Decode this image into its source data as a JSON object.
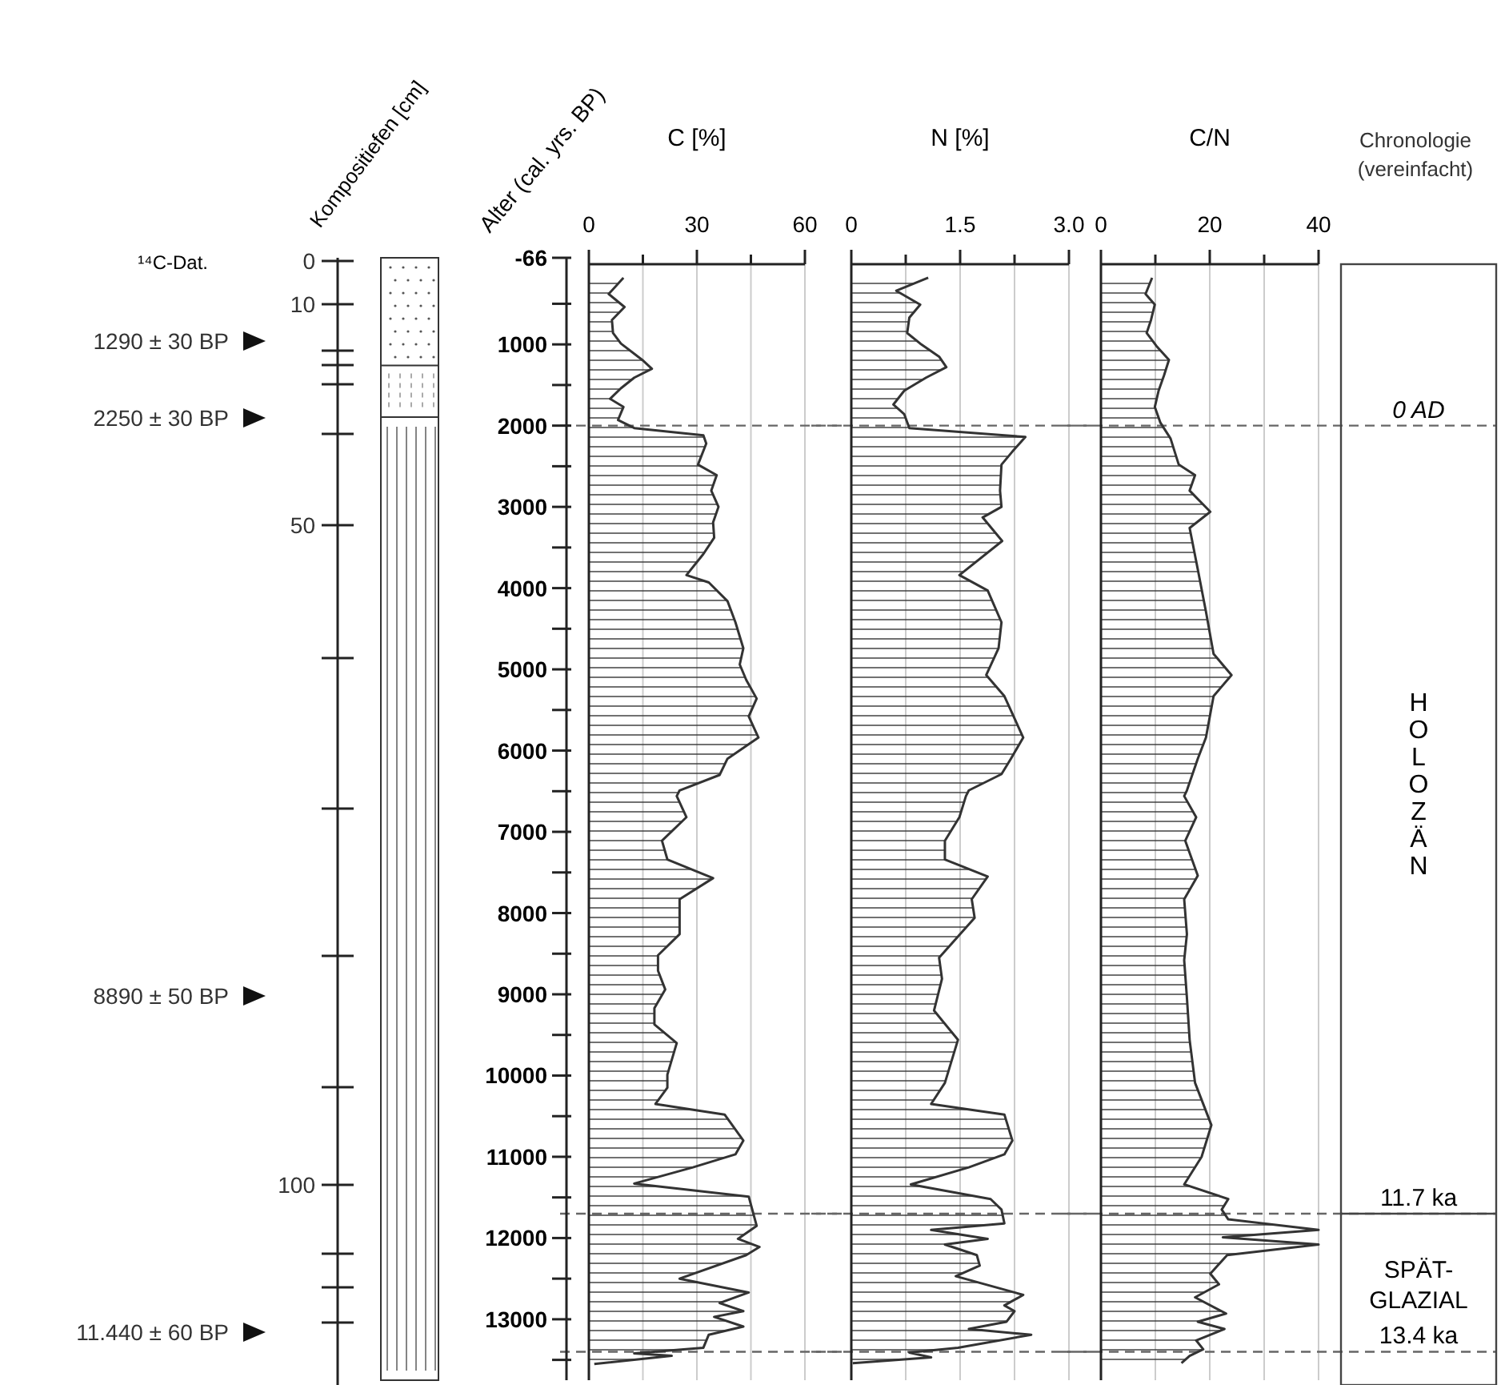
{
  "chart_data": [
    {
      "type": "other",
      "ylabel": "Kompositiefen [cm]",
      "annotations": [
        "¹⁴C-Dat.",
        "1290 ± 30 BP",
        "2250 ± 30 BP",
        "8890 ± 50 BP",
        "11.440 ± 60 BP",
        "0",
        "10",
        "50",
        "100"
      ]
    },
    {
      "type": "area",
      "title": "C [%]",
      "orientation": "horizontal",
      "ylabel": "Alter (cal. yrs. BP)",
      "series": [
        {
          "color": "#333333",
          "x": [
            180,
            380,
            540,
            700,
            860,
            990,
            1190,
            1300,
            1410,
            1540,
            1670,
            1770,
            1930,
            2030,
            2120,
            2220,
            2480,
            2610,
            2800,
            3000,
            3190,
            3380,
            3580,
            3840,
            3930,
            4160,
            4420,
            4740,
            4940,
            5130,
            5360,
            5580,
            5840,
            6100,
            6300,
            6490,
            6560,
            6820,
            7110,
            7340,
            7570,
            7830,
            8260,
            8520,
            8710,
            8940,
            9170,
            9370,
            9600,
            9990,
            10150,
            10350,
            10480,
            10800,
            10970,
            11130,
            11330,
            11490,
            11850,
            12010,
            12110,
            12210,
            12500,
            12670,
            12800,
            12900,
            12970,
            13090,
            13190,
            13350,
            13420,
            13450,
            13550
          ],
          "values": [
            9.6,
            5.5,
            9.9,
            6.4,
            6.7,
            8.9,
            14.8,
            17.5,
            12.6,
            8.9,
            5.9,
            9.6,
            8.1,
            12.6,
            31.8,
            32.6,
            30.3,
            35.5,
            34,
            36,
            34.5,
            34.8,
            31.8,
            27.1,
            33.3,
            38.5,
            40.7,
            42.9,
            41.9,
            43.7,
            46.6,
            44.4,
            47.1,
            38.5,
            36.3,
            25.2,
            24.4,
            27.1,
            20.3,
            21.8,
            34.5,
            25.2,
            25.2,
            19.2,
            19.2,
            21.2,
            18.2,
            18.2,
            24.4,
            21.8,
            21.8,
            18.5,
            37.7,
            42.9,
            40.7,
            28.9,
            12.6,
            44.4,
            46.6,
            41.4,
            47.4,
            43.7,
            25.2,
            44.4,
            36.3,
            42.9,
            34.8,
            42.9,
            33.3,
            31.8,
            12.6,
            23,
            1.5
          ]
        }
      ],
      "xlim": [
        0,
        60
      ],
      "xticks": [
        0,
        {
          "value": 15,
          "label": null
        },
        30,
        {
          "value": 45,
          "label": null
        },
        60
      ],
      "ylim": [
        13750,
        -66
      ],
      "yticks": [
        -66,
        {
          "value": 500,
          "label": null
        },
        1000,
        {
          "value": 1500,
          "label": null
        },
        2000,
        {
          "value": 2500,
          "label": null
        },
        3000,
        {
          "value": 3500,
          "label": null
        },
        4000,
        {
          "value": 4500,
          "label": null
        },
        5000,
        {
          "value": 5500,
          "label": null
        },
        6000,
        {
          "value": 6500,
          "label": null
        },
        7000,
        {
          "value": 7500,
          "label": null
        },
        8000,
        {
          "value": 8500,
          "label": null
        },
        9000,
        {
          "value": 9500,
          "label": null
        },
        10000,
        {
          "value": 10500,
          "label": null
        },
        11000,
        {
          "value": 11500,
          "label": null
        },
        12000,
        {
          "value": 12500,
          "label": null
        },
        13000,
        {
          "value": 13500,
          "label": null
        }
      ],
      "grid": "x",
      "ref_lines": [
        {
          "axis": "y",
          "value": 2000,
          "line_style": "dashed"
        },
        {
          "axis": "y",
          "value": 11700,
          "line_style": "dashed"
        },
        {
          "axis": "y",
          "value": 13400,
          "line_style": "dashed"
        }
      ]
    },
    {
      "type": "area",
      "title": "N [%]",
      "orientation": "horizontal",
      "series": [
        {
          "color": "#333333",
          "x": [
            180,
            340,
            510,
            670,
            860,
            990,
            1150,
            1280,
            1410,
            1570,
            1740,
            1860,
            2030,
            2140,
            2320,
            2480,
            2800,
            3000,
            3130,
            3420,
            3840,
            4030,
            4420,
            4740,
            5070,
            5330,
            5840,
            6100,
            6290,
            6490,
            6560,
            6820,
            7110,
            7340,
            7550,
            7830,
            8060,
            8550,
            8810,
            9200,
            9560,
            10090,
            10350,
            10480,
            10800,
            10970,
            11130,
            11340,
            11520,
            11650,
            11820,
            11900,
            12010,
            12080,
            12210,
            12340,
            12470,
            12700,
            12830,
            12900,
            13030,
            13120,
            13190,
            13350,
            13410,
            13470,
            13540
          ],
          "values": [
            1.06,
            0.62,
            0.95,
            0.8,
            0.77,
            0.95,
            1.21,
            1.31,
            1.03,
            0.73,
            0.58,
            0.73,
            0.8,
            2.4,
            2.22,
            2.07,
            2.05,
            2.07,
            1.81,
            2.08,
            1.49,
            1.88,
            2.07,
            2.03,
            1.86,
            2.11,
            2.37,
            2.2,
            2.07,
            1.62,
            1.58,
            1.49,
            1.29,
            1.29,
            1.88,
            1.66,
            1.7,
            1.21,
            1.25,
            1.14,
            1.47,
            1.29,
            1.1,
            2.11,
            2.22,
            2.11,
            1.62,
            0.82,
            1.92,
            2.07,
            2.11,
            1.1,
            1.88,
            1.29,
            1.73,
            1.77,
            1.44,
            2.37,
            2.11,
            2.25,
            2.14,
            1.62,
            2.48,
            1.47,
            0.8,
            1.1,
            0.02
          ]
        }
      ],
      "xlim": [
        0,
        3
      ],
      "xticks": [
        0,
        {
          "value": 0.75,
          "label": null
        },
        1.5,
        {
          "value": 2.25,
          "label": null
        },
        {
          "value": 3,
          "label": "3.0"
        }
      ],
      "ylim": [
        13750,
        -66
      ],
      "grid": "x",
      "tick_labels": "x",
      "ref_lines": [
        {
          "axis": "y",
          "value": 2000,
          "line_style": "dashed"
        },
        {
          "axis": "y",
          "value": 11700,
          "line_style": "dashed"
        },
        {
          "axis": "y",
          "value": 13400,
          "line_style": "dashed"
        }
      ]
    },
    {
      "type": "area",
      "title": "C/N",
      "orientation": "horizontal",
      "series": [
        {
          "color": "#333333",
          "x": [
            180,
            380,
            510,
            700,
            860,
            1020,
            1190,
            1380,
            1570,
            1770,
            1960,
            2160,
            2480,
            2610,
            2800,
            3060,
            3260,
            3770,
            4290,
            4810,
            5070,
            5330,
            5840,
            6100,
            6490,
            6560,
            6820,
            7110,
            7540,
            7830,
            8260,
            8580,
            9040,
            9560,
            10090,
            10610,
            11000,
            11340,
            11520,
            11650,
            11770,
            11900,
            11990,
            12080,
            12210,
            12440,
            12570,
            12730,
            12930,
            13030,
            13120,
            13260,
            13370,
            13450,
            13540
          ],
          "values": [
            9.4,
            8.2,
            9.9,
            9.2,
            8.4,
            10.2,
            12.5,
            11.6,
            10.6,
            9.9,
            10.9,
            12.8,
            14.3,
            17.3,
            16.3,
            20.1,
            16.3,
            17.8,
            19.3,
            20.7,
            24,
            20.7,
            19.3,
            17.8,
            15.8,
            15.3,
            17.5,
            15.5,
            17.8,
            15.3,
            15.8,
            15.3,
            15.8,
            16.3,
            17.3,
            20.3,
            18.5,
            15.3,
            23.4,
            22.2,
            23.4,
            40,
            22.4,
            40,
            23.2,
            20.1,
            21.7,
            17.3,
            23,
            17.8,
            22.7,
            17.5,
            18.8,
            16.3,
            14.8
          ]
        }
      ],
      "xlim": [
        0,
        40
      ],
      "xticks": [
        0,
        {
          "value": 10,
          "label": null
        },
        20,
        {
          "value": 30,
          "label": null
        },
        40
      ],
      "ylim": [
        13750,
        -66
      ],
      "grid": "x",
      "tick_labels": "x",
      "ref_lines": [
        {
          "axis": "y",
          "value": 2000,
          "label": "0 AD",
          "line_style": "dashed"
        },
        {
          "axis": "y",
          "value": 11700,
          "label": "11.7 ka",
          "line_style": "dashed"
        },
        {
          "axis": "y",
          "value": 13400,
          "label": "13.4 ka",
          "line_style": "dashed"
        }
      ],
      "annotations": [
        "Chronologie (vereinfacht)",
        "HOLOZÄN",
        "SPÄT-GLAZIAL"
      ]
    }
  ]
}
